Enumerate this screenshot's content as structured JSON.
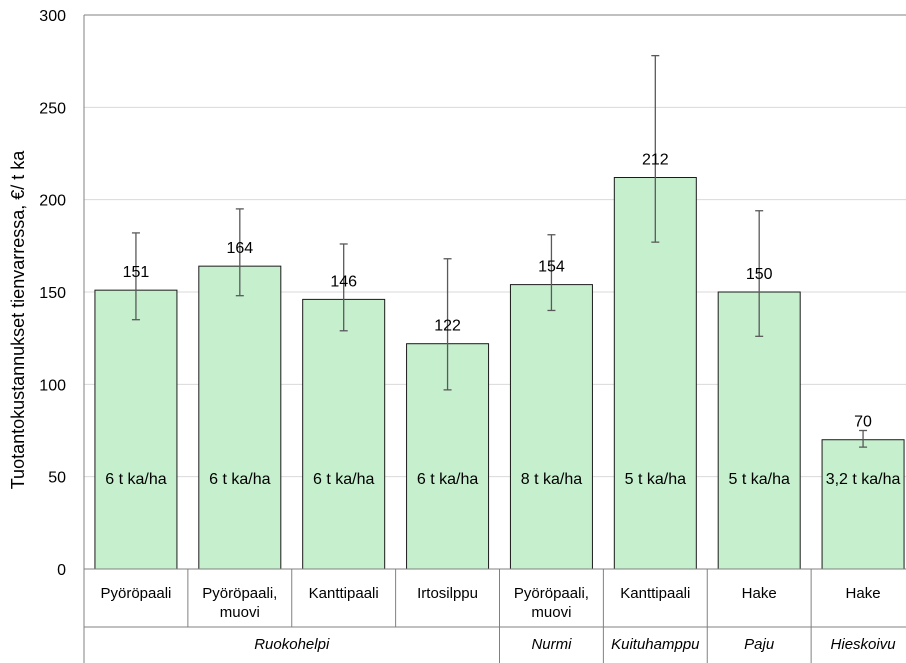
{
  "chart_data": {
    "type": "bar",
    "ylabel": "Tuotantokustannukset tienvarressa, €/ t ka",
    "ylim": [
      0,
      300
    ],
    "yticks": [
      "0",
      "50",
      "100",
      "150",
      "200",
      "250",
      "300"
    ],
    "grid": true,
    "bar_color": "#c6efce",
    "categories": [
      "Pyöröpaali",
      "Pyöröpaali, muovi",
      "Kanttipaali",
      "Irtosilppu",
      "Pyöröpaali, muovi",
      "Kanttipaali",
      "Hake",
      "Hake"
    ],
    "category_lines": [
      [
        "Pyöröpaali"
      ],
      [
        "Pyöröpaali,",
        "muovi"
      ],
      [
        "Kanttipaali"
      ],
      [
        "Irtosilppu"
      ],
      [
        "Pyöröpaali,",
        "muovi"
      ],
      [
        "Kanttipaali"
      ],
      [
        "Hake"
      ],
      [
        "Hake"
      ]
    ],
    "values": [
      151,
      164,
      146,
      122,
      154,
      212,
      150,
      70
    ],
    "value_labels": [
      "151",
      "164",
      "146",
      "122",
      "154",
      "212",
      "150",
      "70"
    ],
    "error_low": [
      135,
      148,
      129,
      97,
      140,
      177,
      126,
      66
    ],
    "error_high": [
      182,
      195,
      176,
      168,
      181,
      278,
      194,
      75
    ],
    "yield_labels": [
      "6 t ka/ha",
      "6 t ka/ha",
      "6 t ka/ha",
      "6 t ka/ha",
      "8 t ka/ha",
      "5 t ka/ha",
      "5 t ka/ha",
      "3,2 t ka/ha"
    ],
    "groups": [
      {
        "label": "Ruokohelpi",
        "start": 0,
        "end": 3
      },
      {
        "label": "Nurmi",
        "start": 4,
        "end": 4
      },
      {
        "label": "Kuituhamppu",
        "start": 5,
        "end": 5
      },
      {
        "label": "Paju",
        "start": 6,
        "end": 6
      },
      {
        "label": "Hieskoivu",
        "start": 7,
        "end": 7
      }
    ]
  }
}
